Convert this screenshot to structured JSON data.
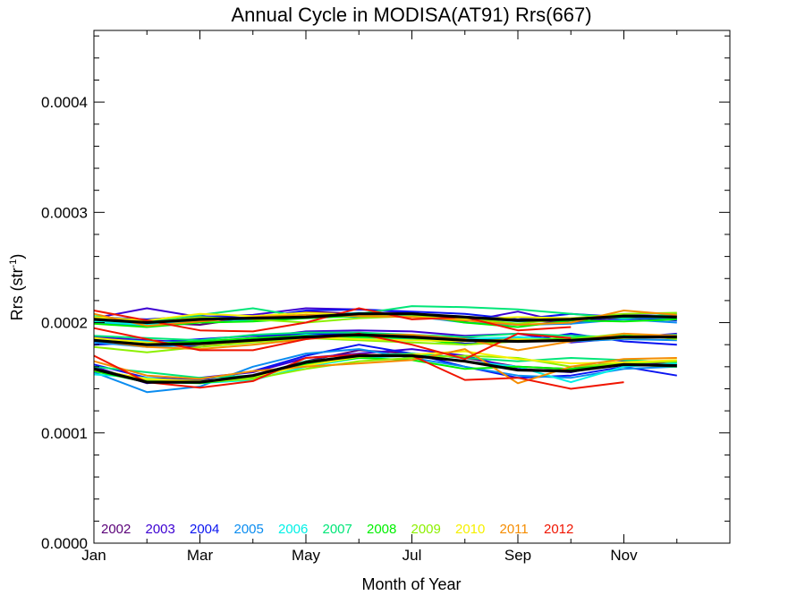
{
  "chart_data": {
    "type": "line",
    "title": "Annual Cycle in MODISA(AT91) Rrs(667)",
    "xlabel": "Month of Year",
    "ylabel_main": "Rrs (str",
    "ylabel_sup": "-1",
    "ylabel_close": ")",
    "xlim": [
      1,
      13
    ],
    "ylim": [
      0.0,
      0.000465
    ],
    "x_ticks": [
      1,
      3,
      5,
      7,
      9,
      11
    ],
    "x_tick_labels": [
      "Jan",
      "Mar",
      "May",
      "Jul",
      "Sep",
      "Nov"
    ],
    "y_ticks": [
      0.0,
      0.0001,
      0.0002,
      0.0003,
      0.0004
    ],
    "y_tick_labels": [
      "0.0000",
      "0.0001",
      "0.0002",
      "0.0003",
      "0.0004"
    ],
    "grid": false,
    "legend_position": "bottom-left",
    "months": [
      1,
      2,
      3,
      4,
      5,
      6,
      7,
      8,
      9,
      10,
      11,
      12
    ],
    "series": [
      {
        "name": "2002",
        "color": "#5a0078",
        "groups": [
          [
            0.000158,
            0.000148,
            0.000146,
            0.000152,
            0.000165,
            0.000175,
            0.000172,
            0.000168,
            0.00016,
            0.000158,
            0.000165,
            0.000162
          ],
          [
            0.000183,
            0.00018,
            0.000178,
            0.000185,
            0.00019,
            0.00019,
            0.000188,
            0.000186,
            0.000184,
            0.000185,
            0.000188,
            0.000186
          ],
          [
            0.000202,
            0.0002,
            0.000198,
            0.000205,
            0.00021,
            0.000208,
            0.000207,
            0.000204,
            0.000202,
            0.0002,
            0.000204,
            0.000203
          ]
        ]
      },
      {
        "name": "2003",
        "color": "#3c00d2",
        "groups": [
          [
            0.00016,
            0.000145,
            0.00015,
            0.000155,
            0.000168,
            0.000172,
            0.000176,
            0.00017,
            0.000158,
            0.000155,
            0.000165,
            0.00016
          ],
          [
            0.000187,
            0.000184,
            0.000182,
            0.000186,
            0.000192,
            0.000193,
            0.000192,
            0.000188,
            0.00019,
            0.000182,
            0.000186,
            0.00019
          ],
          [
            0.000204,
            0.000213,
            0.000205,
            0.000207,
            0.000213,
            0.000212,
            0.000209,
            0.000201,
            0.00021,
            0.000199,
            0.000207,
            0.000206
          ]
        ]
      },
      {
        "name": "2004",
        "color": "#0a14f0",
        "groups": [
          [
            0.000162,
            0.00015,
            0.000148,
            0.000156,
            0.00017,
            0.00018,
            0.000172,
            0.00016,
            0.00015,
            0.000152,
            0.00016,
            0.000152
          ],
          [
            0.00018,
            0.000182,
            0.000185,
            0.000188,
            0.00019,
            0.000189,
            0.000187,
            0.000181,
            0.000183,
            0.00019,
            0.000183,
            0.00018
          ],
          [
            0.000205,
            0.000203,
            0.000206,
            0.000204,
            0.000211,
            0.000212,
            0.00021,
            0.000208,
            0.000203,
            0.000208,
            0.000205,
            0.000202
          ]
        ]
      },
      {
        "name": "2005",
        "color": "#0a8cf0",
        "groups": [
          [
            0.000155,
            0.000137,
            0.000142,
            0.00016,
            0.000172,
            0.000176,
            0.000168,
            0.00016,
            0.000152,
            0.00015,
            0.000158,
            0.00016
          ],
          [
            0.000182,
            0.000178,
            0.00018,
            0.000183,
            0.000186,
            0.000188,
            0.000185,
            0.000183,
            0.000186,
            0.000183,
            0.000185,
            0.000184
          ],
          [
            0.0002,
            0.000197,
            0.000202,
            0.000204,
            0.000207,
            0.000205,
            0.000206,
            0.0002,
            0.000198,
            0.000199,
            0.000203,
            0.0002
          ]
        ]
      },
      {
        "name": "2006",
        "color": "#00f0e6",
        "groups": [
          [
            0.000153,
            0.00015,
            0.000145,
            0.000148,
            0.00016,
            0.000168,
            0.00017,
            0.000165,
            0.00016,
            0.000146,
            0.00016,
            0.000163
          ],
          [
            0.000185,
            0.000183,
            0.000181,
            0.000184,
            0.000189,
            0.000186,
            0.000184,
            0.000185,
            0.000187,
            0.000184,
            0.000186,
            0.000188
          ],
          [
            0.000201,
            0.000198,
            0.000203,
            0.000202,
            0.000206,
            0.000209,
            0.000207,
            0.000205,
            0.000201,
            0.000203,
            0.000205,
            0.000204
          ]
        ]
      },
      {
        "name": "2007",
        "color": "#00e678",
        "groups": [
          [
            0.00016,
            0.000155,
            0.00015,
            0.000152,
            0.000165,
            0.00017,
            0.000172,
            0.000168,
            0.000165,
            0.000168,
            0.000166,
            0.000164
          ],
          [
            0.000188,
            0.000186,
            0.000184,
            0.000189,
            0.000191,
            0.000191,
            0.000189,
            0.000187,
            0.00019,
            0.000188,
            0.000187,
            0.000189
          ],
          [
            0.000206,
            0.000201,
            0.000207,
            0.000213,
            0.000205,
            0.000208,
            0.000215,
            0.000214,
            0.000212,
            0.000208,
            0.000204,
            0.000208
          ]
        ]
      },
      {
        "name": "2008",
        "color": "#00f000",
        "groups": [
          [
            0.000156,
            0.000146,
            0.000145,
            0.00015,
            0.000162,
            0.000168,
            0.000166,
            0.000158,
            0.00016,
            0.000158,
            0.000162,
            0.00016
          ],
          [
            0.000184,
            0.000181,
            0.000183,
            0.000186,
            0.000188,
            0.000187,
            0.000186,
            0.00018,
            0.000184,
            0.000186,
            0.000188,
            0.000187
          ],
          [
            0.000199,
            0.000196,
            0.0002,
            0.000201,
            0.000204,
            0.000206,
            0.000208,
            0.0002,
            0.000196,
            0.000202,
            0.000201,
            0.000203
          ]
        ]
      },
      {
        "name": "2009",
        "color": "#8cf000",
        "groups": [
          [
            0.000158,
            0.000148,
            0.000146,
            0.000149,
            0.000158,
            0.000165,
            0.000168,
            0.00017,
            0.000168,
            0.00016,
            0.000163,
            0.000165
          ],
          [
            0.000178,
            0.000173,
            0.000178,
            0.000182,
            0.000186,
            0.000184,
            0.000182,
            0.00018,
            0.000183,
            0.000185,
            0.00019,
            0.000185
          ],
          [
            0.000203,
            0.0002,
            0.000205,
            0.000203,
            0.0002,
            0.000204,
            0.000206,
            0.000204,
            0.000199,
            0.000204,
            0.000208,
            0.000209
          ]
        ]
      },
      {
        "name": "2010",
        "color": "#f5f000",
        "groups": [
          [
            0.000157,
            0.000149,
            0.000147,
            0.000151,
            0.000161,
            0.000169,
            0.000171,
            0.000174,
            0.000167,
            0.000163,
            0.000164,
            0.000166
          ],
          [
            0.000186,
            0.000182,
            0.00018,
            0.000183,
            0.000187,
            0.000185,
            0.000184,
            0.000183,
            0.000185,
            0.000184,
            0.000186,
            0.000187
          ],
          [
            0.000205,
            0.000202,
            0.000208,
            0.000206,
            0.000209,
            0.000207,
            0.000205,
            0.000203,
            0.000205,
            0.000204,
            0.000206,
            0.000205
          ]
        ]
      },
      {
        "name": "2011",
        "color": "#f58c00",
        "groups": [
          [
            0.000165,
            0.000152,
            0.000149,
            0.000156,
            0.00016,
            0.000163,
            0.000166,
            0.000176,
            0.000145,
            0.00016,
            0.000167,
            0.000168
          ],
          [
            0.000184,
            0.000178,
            0.000176,
            0.00018,
            0.000185,
            0.000189,
            0.000189,
            0.000185,
            0.000175,
            0.000183,
            0.00019,
            0.000188
          ],
          [
            0.000208,
            0.000197,
            0.000201,
            0.000205,
            0.000207,
            0.000206,
            0.000205,
            0.000202,
            0.000198,
            0.0002,
            0.000211,
            0.000207
          ]
        ]
      },
      {
        "name": "2012",
        "color": "#f01400",
        "groups": [
          [
            0.00017,
            0.000146,
            0.000141,
            0.000147,
            0.000168,
            0.000171,
            0.00017,
            0.000148,
            0.00015,
            0.00014,
            0.000146
          ],
          [
            0.000195,
            0.000185,
            0.000175,
            0.000175,
            0.000185,
            0.00019,
            0.00018,
            0.000167,
            0.00019,
            0.000186
          ],
          [
            0.000211,
            0.000202,
            0.000193,
            0.000192,
            0.0002,
            0.000213,
            0.000203,
            0.000205,
            0.000193,
            0.000196
          ]
        ]
      }
    ],
    "mean_color": "#000000",
    "mean_lines": [
      [
        0.000158,
        0.000146,
        0.000146,
        0.000152,
        0.000164,
        0.00017,
        0.00017,
        0.000165,
        0.000157,
        0.000156,
        0.000162,
        0.000161
      ],
      [
        0.000184,
        0.00018,
        0.000181,
        0.000184,
        0.000187,
        0.000189,
        0.000187,
        0.000184,
        0.000183,
        0.000184,
        0.000187,
        0.000187
      ],
      [
        0.000203,
        0.0002,
        0.000203,
        0.000204,
        0.000205,
        0.000208,
        0.000208,
        0.000205,
        0.000202,
        0.000203,
        0.000206,
        0.000205
      ]
    ]
  }
}
